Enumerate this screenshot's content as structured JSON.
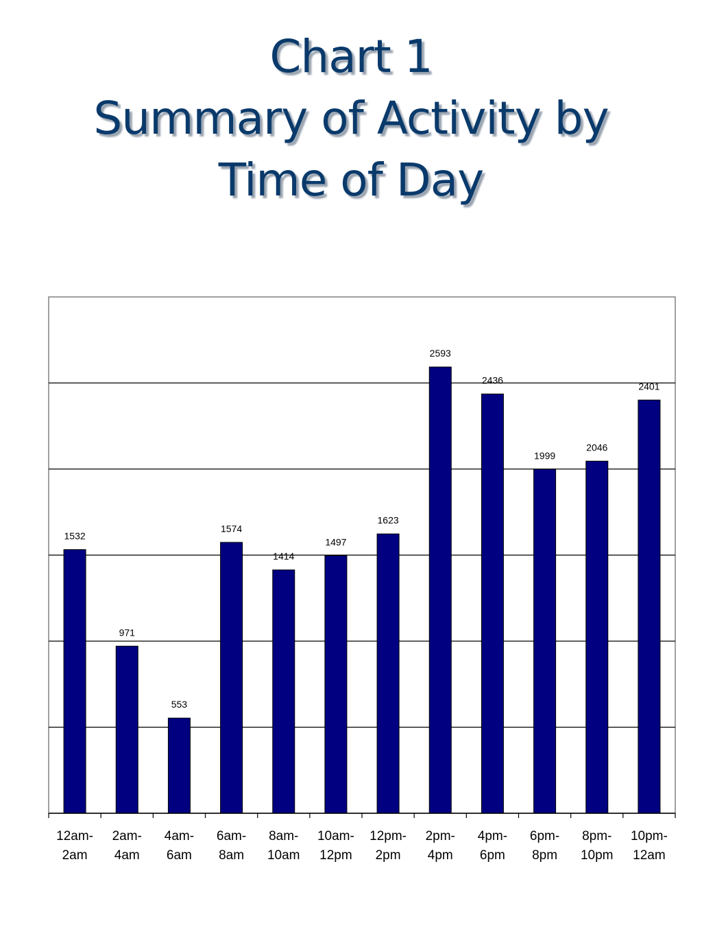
{
  "chart_data": {
    "type": "bar",
    "title_lines": [
      "Chart 1",
      "Summary of Activity by",
      "Time of Day"
    ],
    "categories": [
      [
        "12am-",
        "2am"
      ],
      [
        "2am-",
        "4am"
      ],
      [
        "4am-",
        "6am"
      ],
      [
        "6am-",
        "8am"
      ],
      [
        "8am-",
        "10am"
      ],
      [
        "10am-",
        "12pm"
      ],
      [
        "12pm-",
        "2pm"
      ],
      [
        "2pm-",
        "4pm"
      ],
      [
        "4pm-",
        "6pm"
      ],
      [
        "6pm-",
        "8pm"
      ],
      [
        "8pm-",
        "10pm"
      ],
      [
        "10pm-",
        "12am"
      ]
    ],
    "values": [
      1532,
      971,
      553,
      1574,
      1414,
      1497,
      1623,
      2593,
      2436,
      1999,
      2046,
      2401
    ],
    "data_labels": [
      "1532",
      "971",
      "553",
      "1574",
      "1414",
      "1497",
      "1623",
      "2593",
      "2436",
      "1999",
      "2046",
      "2401"
    ],
    "ylim": [
      0,
      3000
    ],
    "gridline_values": [
      500,
      1000,
      1500,
      2000,
      2500
    ],
    "grid": true,
    "legend": "none",
    "bar_color": "#000080",
    "title_color": "#0a3a6b"
  }
}
